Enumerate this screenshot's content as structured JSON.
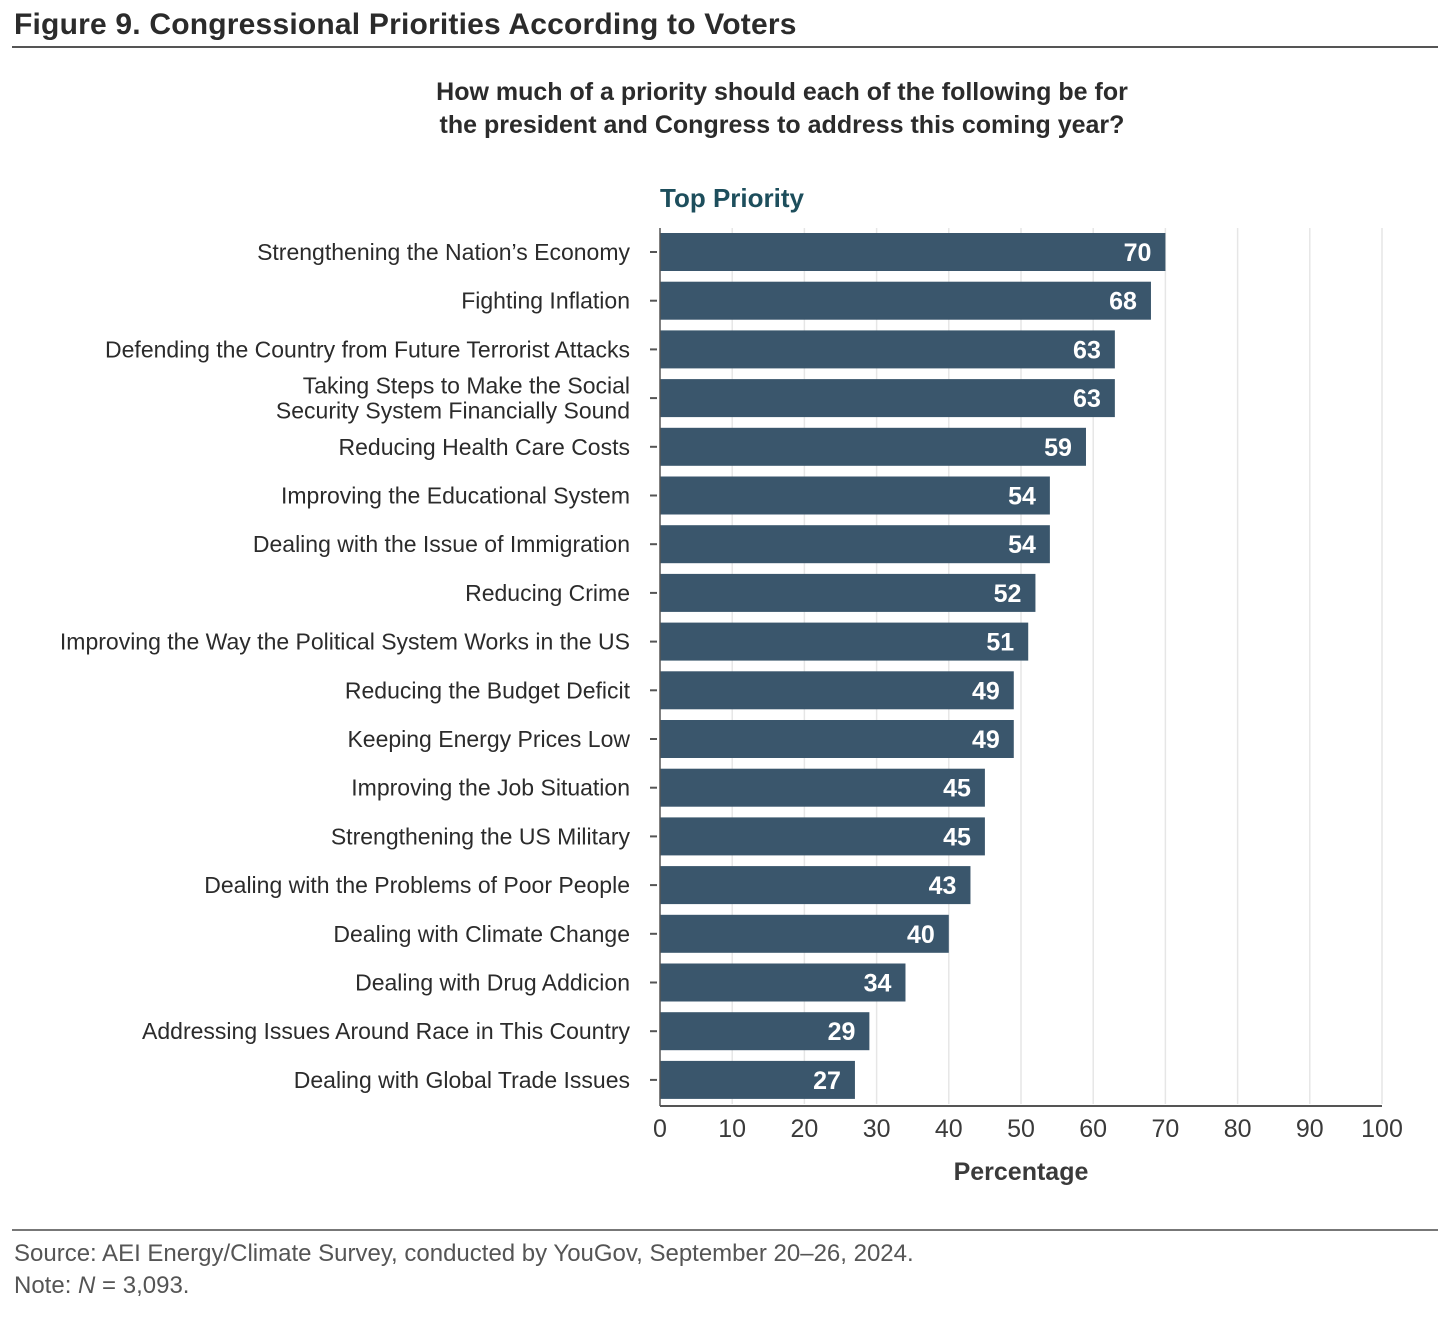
{
  "figure_title": "Figure 9. Congressional Priorities According to Voters",
  "question_line1": "How much of a priority should each of the following be for",
  "question_line2": "the president and Congress to address this coming year?",
  "source": "Source: AEI Energy/Climate Survey, conducted by YouGov, September 20–26, 2024.",
  "note_prefix": "Note: ",
  "note_n": "N",
  "note_suffix": " = 3,093.",
  "colors": {
    "bar": "#3a566c",
    "bar_label": "#ffffff",
    "grid": "#e6e6e6",
    "axis": "#555555",
    "series_title": "#1d4e5c"
  },
  "chart_data": {
    "type": "bar",
    "orientation": "horizontal",
    "series_title": "Top Priority",
    "xlabel": "Percentage",
    "xlim": [
      0,
      100
    ],
    "xticks": [
      0,
      10,
      20,
      30,
      40,
      50,
      60,
      70,
      80,
      90,
      100
    ],
    "grid": true,
    "categories": [
      "Strengthening the Nation’s Economy",
      "Fighting Inflation",
      "Defending the Country from Future Terrorist Attacks",
      "Taking Steps to Make the Social\nSecurity System Financially Sound",
      "Reducing Health Care Costs",
      "Improving the Educational System",
      "Dealing with the Issue of Immigration",
      "Reducing Crime",
      "Improving the Way the Political System Works in the US",
      "Reducing the Budget Deficit",
      "Keeping Energy Prices Low",
      "Improving the Job Situation",
      "Strengthening the US Military",
      "Dealing with the Problems of Poor People",
      "Dealing with Climate Change",
      "Dealing with Drug Addicion",
      "Addressing Issues Around Race in This Country",
      "Dealing with Global Trade Issues"
    ],
    "values": [
      70,
      68,
      63,
      63,
      59,
      54,
      54,
      52,
      51,
      49,
      49,
      45,
      45,
      43,
      40,
      34,
      29,
      27
    ]
  }
}
